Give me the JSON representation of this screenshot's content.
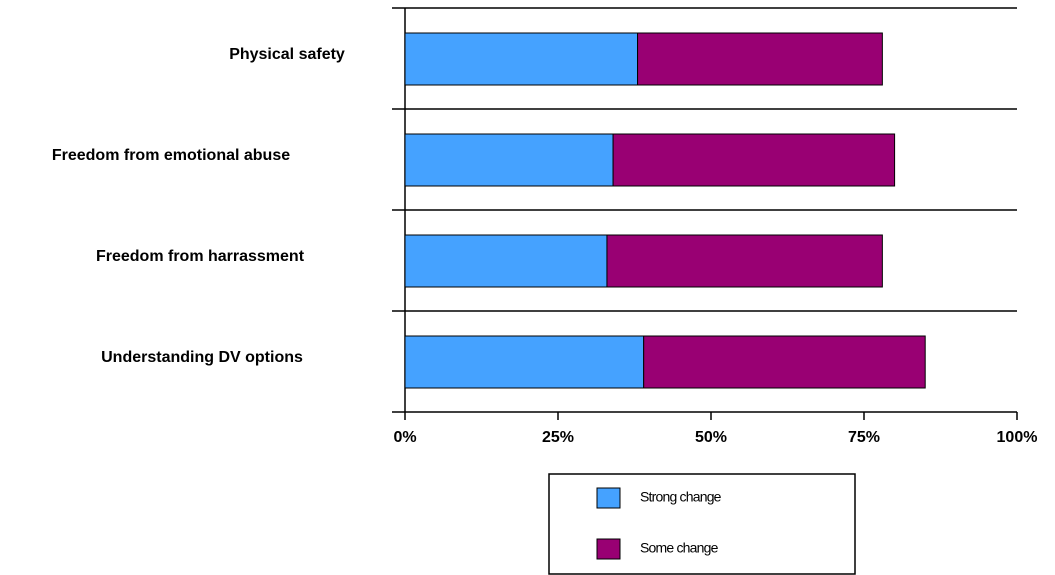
{
  "chart_data": {
    "type": "stacked-bar-horizontal",
    "categories": [
      "Physical safety",
      "Freedom from emotional abuse",
      "Freedom from harrassment",
      "Understanding DV options"
    ],
    "series": [
      {
        "name": "Strong change",
        "color": "#45a2ff",
        "values": [
          38,
          34,
          33,
          39
        ]
      },
      {
        "name": "Some change",
        "color": "#990073",
        "values": [
          40,
          46,
          45,
          46
        ]
      }
    ],
    "xlim": [
      0,
      100
    ],
    "xticks": [
      {
        "value": 0,
        "label": "0%"
      },
      {
        "value": 25,
        "label": "25%"
      },
      {
        "value": 50,
        "label": "50%"
      },
      {
        "value": 75,
        "label": "75%"
      },
      {
        "value": 100,
        "label": "100%"
      }
    ],
    "legend": "bottom"
  }
}
